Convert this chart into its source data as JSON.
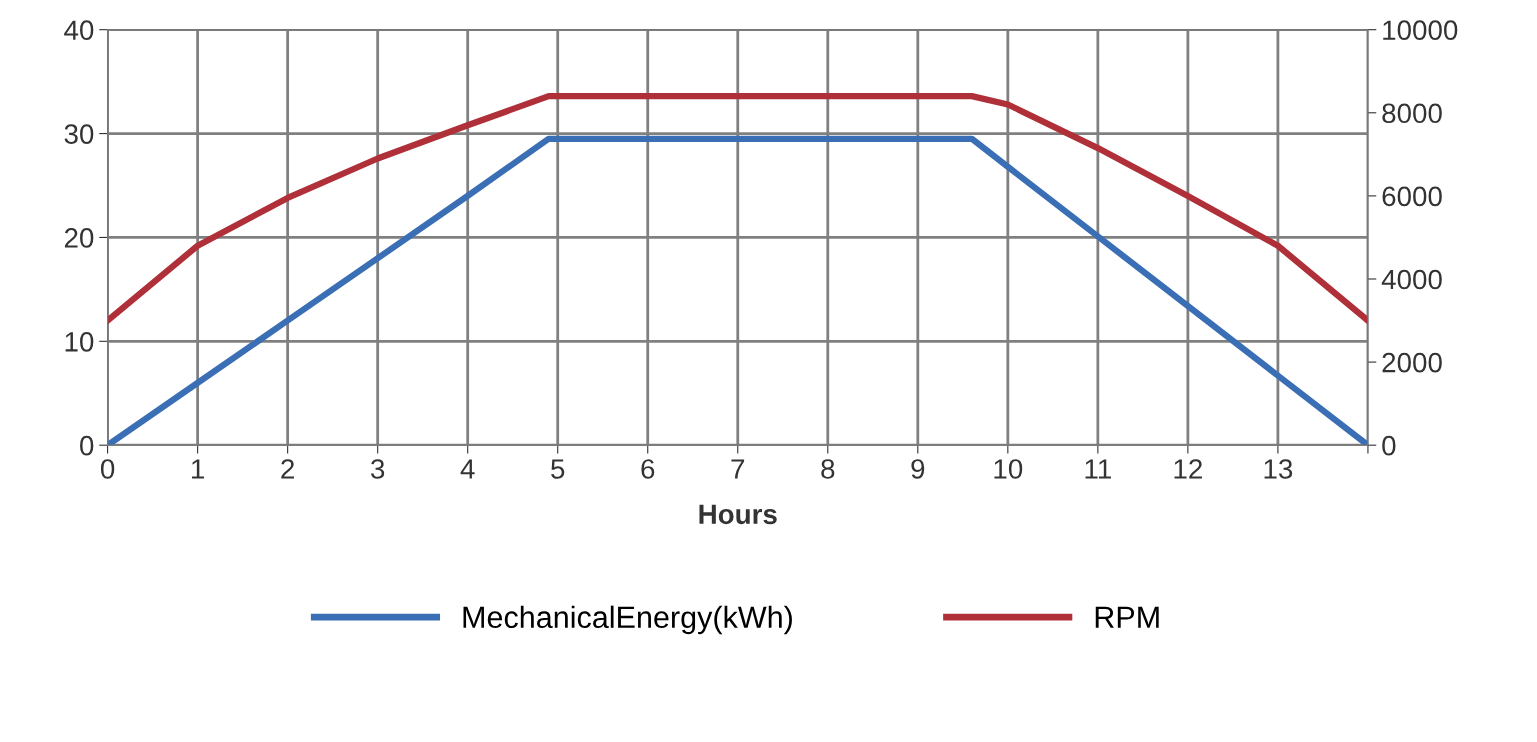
{
  "chart_data": {
    "type": "line",
    "xlabel": "Hours",
    "xlim": [
      0,
      14
    ],
    "xticks": [
      0,
      1,
      2,
      3,
      4,
      5,
      6,
      7,
      8,
      9,
      10,
      11,
      12,
      13,
      {
        "value": 14,
        "label": null
      }
    ],
    "ylim": [
      0,
      40
    ],
    "yticks": [
      0,
      10,
      20,
      30,
      40
    ],
    "y2lim": [
      0,
      10000
    ],
    "y2ticks": [
      0,
      2000,
      4000,
      6000,
      8000,
      10000
    ],
    "grid": true,
    "legend": "bottom",
    "marker": "none",
    "line_style": "solid",
    "series": [
      {
        "name": "MechanicalEnergy(kWh)",
        "color": "#3a6eb5",
        "x": [
          0,
          1,
          2,
          3,
          4,
          4.9,
          9.6,
          10,
          11,
          12,
          13,
          14
        ],
        "values": [
          0,
          6,
          12,
          18,
          24,
          29.5,
          29.5,
          26.8,
          20.1,
          13.4,
          6.7,
          0
        ]
      },
      {
        "name": "RPM",
        "color": "#b0303a",
        "axis": "y2",
        "x": [
          0,
          1,
          2,
          3,
          4,
          4.9,
          9.6,
          10,
          11,
          12,
          13,
          14
        ],
        "values": [
          3000,
          4800,
          5950,
          6900,
          7700,
          8400,
          8400,
          8200,
          7150,
          6000,
          4800,
          3000
        ]
      }
    ]
  }
}
